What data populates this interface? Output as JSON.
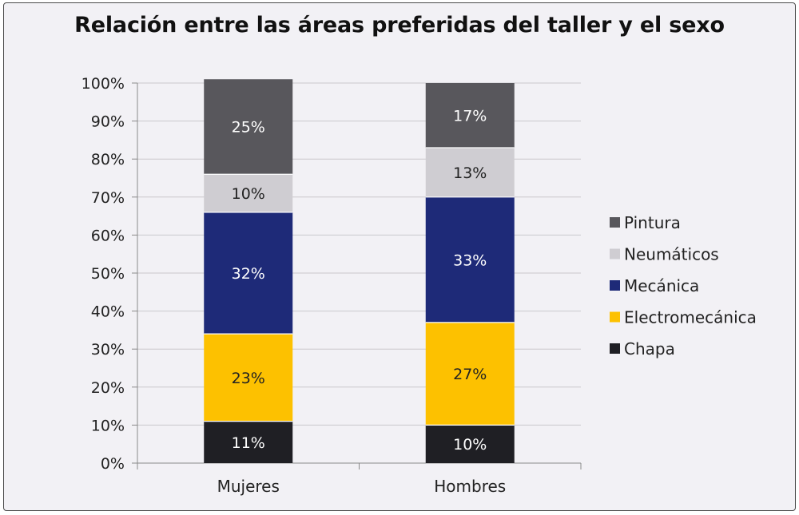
{
  "chart_data": {
    "type": "bar",
    "stacked": true,
    "title": "Relación entre las áreas preferidas del taller y el sexo",
    "categories": [
      "Mujeres",
      "Hombres"
    ],
    "ylim": [
      0,
      100
    ],
    "yticks": [
      "0%",
      "10%",
      "20%",
      "30%",
      "40%",
      "50%",
      "60%",
      "70%",
      "80%",
      "90%",
      "100%"
    ],
    "legend_position": "right",
    "series": [
      {
        "name": "Chapa",
        "color": "#1f1f24",
        "label_color": "#ffffff",
        "values": [
          11,
          10
        ],
        "labels": [
          "11%",
          "10%"
        ]
      },
      {
        "name": "Electromecánica",
        "color": "#fdc100",
        "label_color": "#222222",
        "values": [
          23,
          27
        ],
        "labels": [
          "23%",
          "27%"
        ]
      },
      {
        "name": "Mecánica",
        "color": "#1e2a78",
        "label_color": "#ffffff",
        "values": [
          32,
          33
        ],
        "labels": [
          "32%",
          "33%"
        ]
      },
      {
        "name": "Neumáticos",
        "color": "#cfcdd2",
        "label_color": "#222222",
        "values": [
          10,
          13
        ],
        "labels": [
          "10%",
          "13%"
        ]
      },
      {
        "name": "Pintura",
        "color": "#58575c",
        "label_color": "#ffffff",
        "values": [
          25,
          17
        ],
        "labels": [
          "25%",
          "17%"
        ]
      }
    ]
  }
}
